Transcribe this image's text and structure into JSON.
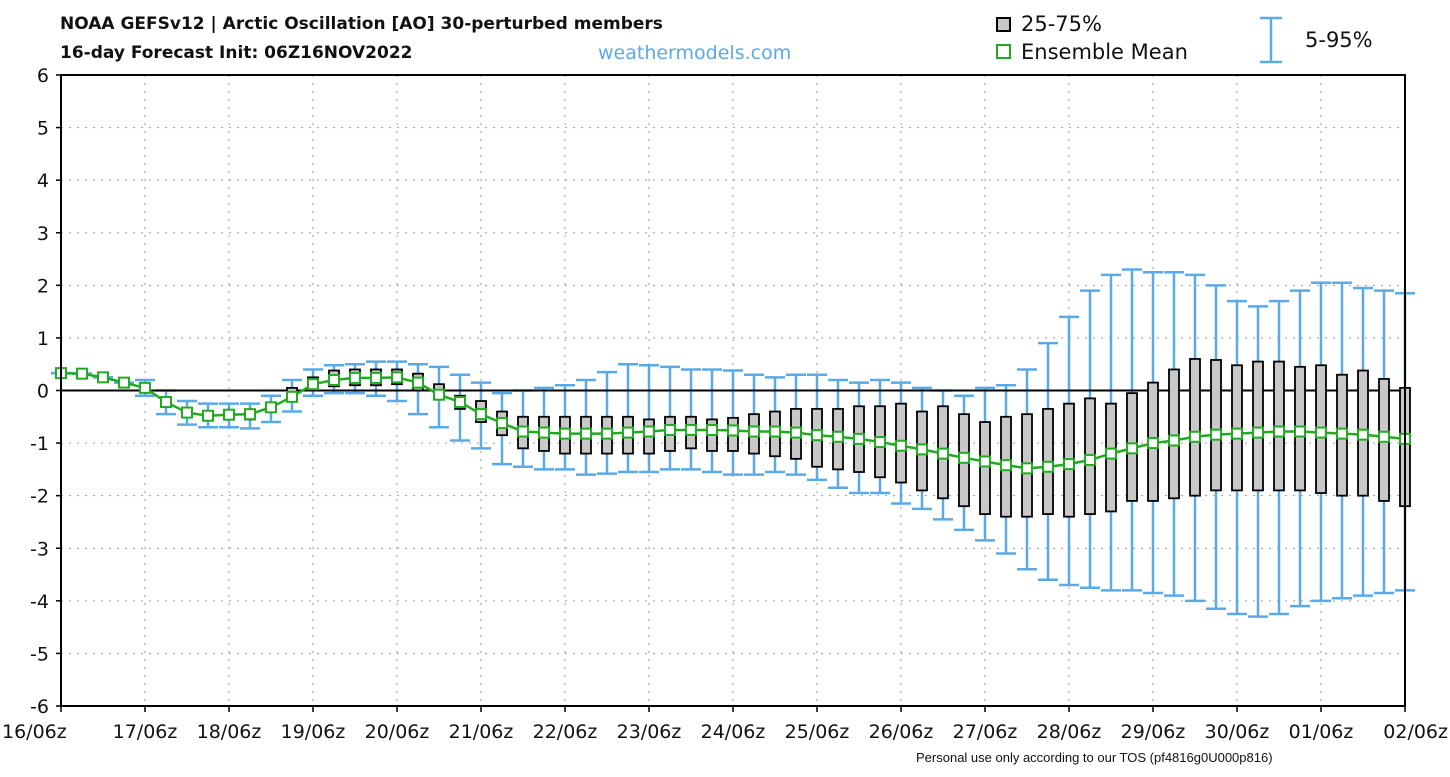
{
  "header": {
    "title_line1": "NOAA GEFSv12 | Arctic Oscillation [AO]  30-perturbed members",
    "title_line2": "16-day Forecast Init: 06Z16NOV2022",
    "site": "weathermodels.com",
    "credit": "Personal use only according to our TOS (pf4816g0U000p816)"
  },
  "legend": {
    "box_label": "25-75%",
    "mean_label": "Ensemble Mean",
    "whisker_label": "5-95%"
  },
  "colors": {
    "box_fill": "#c8c8c8",
    "box_stroke": "#000000",
    "whisker": "#5aaae8",
    "mean": "#22aa22",
    "zero_line": "#000000",
    "grid": "#9a9a9a"
  },
  "chart_data": {
    "type": "box",
    "title": "NOAA GEFSv12 | Arctic Oscillation [AO]  30-perturbed members",
    "ylim": [
      -6,
      6
    ],
    "xlim_days": [
      0,
      16
    ],
    "grid": true,
    "legend_position": "top-right",
    "y_ticks": [
      "6",
      "5",
      "4",
      "3",
      "2",
      "1",
      "0",
      "-1",
      "-2",
      "-3",
      "-4",
      "-5",
      "-6"
    ],
    "x_ticks": [
      "16/06z",
      "17/06z",
      "18/06z",
      "19/06z",
      "20/06z",
      "21/06z",
      "22/06z",
      "23/06z",
      "24/06z",
      "25/06z",
      "26/06z",
      "27/06z",
      "28/06z",
      "29/06z",
      "30/06z",
      "01/06z",
      "02/06z"
    ],
    "forecast_hours": [
      0,
      6,
      12,
      18,
      24,
      30,
      36,
      42,
      48,
      54,
      60,
      66,
      72,
      78,
      84,
      90,
      96,
      102,
      108,
      114,
      120,
      126,
      132,
      138,
      144,
      150,
      156,
      162,
      168,
      174,
      180,
      186,
      192,
      198,
      204,
      210,
      216,
      222,
      228,
      234,
      240,
      246,
      252,
      258,
      264,
      270,
      276,
      282,
      288,
      294,
      300,
      306,
      312,
      318,
      324,
      330,
      336,
      342,
      348,
      354,
      360,
      366,
      372,
      378,
      384
    ],
    "series": [
      {
        "name": "Ensemble Mean",
        "values": [
          0.33,
          0.32,
          0.25,
          0.15,
          0.05,
          -0.22,
          -0.42,
          -0.48,
          -0.46,
          -0.45,
          -0.32,
          -0.12,
          0.12,
          0.2,
          0.24,
          0.24,
          0.25,
          0.15,
          -0.08,
          -0.22,
          -0.45,
          -0.62,
          -0.78,
          -0.8,
          -0.82,
          -0.82,
          -0.82,
          -0.8,
          -0.78,
          -0.75,
          -0.75,
          -0.75,
          -0.76,
          -0.78,
          -0.78,
          -0.8,
          -0.85,
          -0.88,
          -0.92,
          -0.98,
          -1.05,
          -1.12,
          -1.2,
          -1.28,
          -1.35,
          -1.42,
          -1.48,
          -1.45,
          -1.4,
          -1.32,
          -1.2,
          -1.1,
          -1.0,
          -0.95,
          -0.88,
          -0.84,
          -0.82,
          -0.8,
          -0.78,
          -0.78,
          -0.8,
          -0.82,
          -0.84,
          -0.88,
          -0.92
        ]
      },
      {
        "name": "25-75%",
        "q25": [
          0.33,
          0.32,
          0.25,
          0.15,
          0.02,
          -0.25,
          -0.45,
          -0.55,
          -0.55,
          -0.55,
          -0.4,
          -0.2,
          0.0,
          0.08,
          0.1,
          0.1,
          0.12,
          0.0,
          -0.15,
          -0.35,
          -0.6,
          -0.85,
          -1.1,
          -1.15,
          -1.2,
          -1.2,
          -1.2,
          -1.2,
          -1.2,
          -1.15,
          -1.1,
          -1.15,
          -1.15,
          -1.2,
          -1.25,
          -1.3,
          -1.45,
          -1.5,
          -1.55,
          -1.65,
          -1.75,
          -1.9,
          -2.05,
          -2.2,
          -2.35,
          -2.4,
          -2.4,
          -2.35,
          -2.4,
          -2.35,
          -2.3,
          -2.1,
          -2.1,
          -2.05,
          -2.0,
          -1.9,
          -1.9,
          -1.9,
          -1.9,
          -1.9,
          -1.95,
          -2.0,
          -2.0,
          -2.1,
          -2.2
        ],
        "q75": [
          0.33,
          0.32,
          0.25,
          0.15,
          0.07,
          -0.2,
          -0.38,
          -0.42,
          -0.38,
          -0.38,
          -0.25,
          0.05,
          0.25,
          0.38,
          0.4,
          0.4,
          0.4,
          0.32,
          0.12,
          -0.1,
          -0.2,
          -0.4,
          -0.5,
          -0.5,
          -0.5,
          -0.5,
          -0.5,
          -0.5,
          -0.55,
          -0.5,
          -0.5,
          -0.55,
          -0.52,
          -0.45,
          -0.4,
          -0.35,
          -0.35,
          -0.35,
          -0.3,
          -0.3,
          -0.25,
          -0.4,
          -0.3,
          -0.45,
          -0.6,
          -0.5,
          -0.45,
          -0.35,
          -0.25,
          -0.15,
          -0.25,
          -0.05,
          0.15,
          0.4,
          0.6,
          0.58,
          0.48,
          0.55,
          0.55,
          0.45,
          0.48,
          0.3,
          0.38,
          0.22,
          0.05
        ]
      },
      {
        "name": "5-95%",
        "p5": [
          0.33,
          0.32,
          0.25,
          0.15,
          -0.1,
          -0.45,
          -0.65,
          -0.7,
          -0.7,
          -0.72,
          -0.6,
          -0.4,
          -0.1,
          -0.05,
          -0.05,
          -0.1,
          -0.2,
          -0.45,
          -0.7,
          -0.95,
          -1.1,
          -1.4,
          -1.45,
          -1.5,
          -1.5,
          -1.6,
          -1.58,
          -1.55,
          -1.55,
          -1.5,
          -1.5,
          -1.55,
          -1.6,
          -1.6,
          -1.55,
          -1.6,
          -1.7,
          -1.85,
          -1.95,
          -1.95,
          -2.15,
          -2.25,
          -2.45,
          -2.65,
          -2.85,
          -3.1,
          -3.4,
          -3.6,
          -3.7,
          -3.75,
          -3.8,
          -3.8,
          -3.85,
          -3.9,
          -4.0,
          -4.15,
          -4.25,
          -4.3,
          -4.25,
          -4.1,
          -4.0,
          -3.95,
          -3.9,
          -3.85,
          -3.8
        ],
        "p95": [
          0.33,
          0.32,
          0.25,
          0.15,
          0.2,
          0.0,
          -0.2,
          -0.25,
          -0.25,
          -0.25,
          -0.1,
          0.2,
          0.4,
          0.48,
          0.5,
          0.55,
          0.55,
          0.5,
          0.45,
          0.3,
          0.15,
          -0.05,
          0.0,
          0.05,
          0.1,
          0.2,
          0.35,
          0.5,
          0.48,
          0.45,
          0.4,
          0.4,
          0.38,
          0.3,
          0.25,
          0.3,
          0.3,
          0.2,
          0.15,
          0.2,
          0.15,
          0.05,
          0.0,
          -0.1,
          0.05,
          0.1,
          0.4,
          0.9,
          1.4,
          1.9,
          2.2,
          2.3,
          2.25,
          2.25,
          2.2,
          2.0,
          1.7,
          1.6,
          1.7,
          1.9,
          2.05,
          2.05,
          1.95,
          1.9,
          1.85
        ]
      }
    ]
  }
}
